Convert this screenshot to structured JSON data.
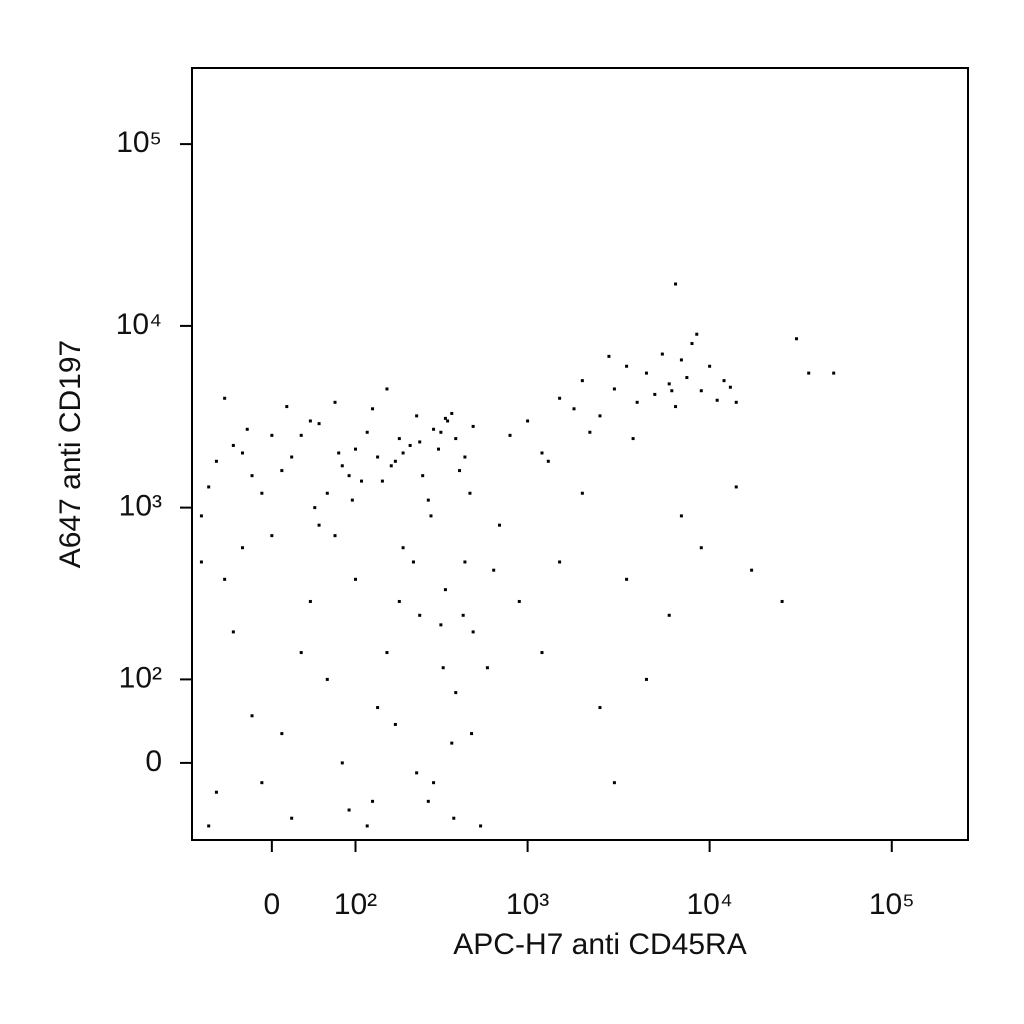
{
  "chart_data": {
    "type": "scatter",
    "x_label": "APC-H7 anti CD45RA",
    "y_label": "A647 anti CD197",
    "scale": "asinh",
    "linear_width": 79,
    "xlim": [
      -94,
      262144
    ],
    "ylim": [
      -90,
      262144
    ],
    "xticks": [
      0,
      {
        "value": 100,
        "label": "10²"
      },
      {
        "value": 1000,
        "label": "10³"
      },
      {
        "value": 10000,
        "label": "10⁴"
      },
      {
        "value": 100000,
        "label": "10⁵"
      }
    ],
    "yticks": [
      0,
      {
        "value": 100,
        "label": "10²"
      },
      {
        "value": 1000,
        "label": "10³"
      },
      {
        "value": 10000,
        "label": "10⁴"
      },
      {
        "value": 100000,
        "label": "10⁵"
      }
    ],
    "color": "#000000",
    "x": [
      -60,
      -40,
      -20,
      0,
      20,
      40,
      60,
      80,
      100,
      120,
      150,
      180,
      200,
      250,
      300,
      350,
      400,
      450,
      500,
      -70,
      -30,
      10,
      50,
      90,
      130,
      170,
      220,
      280,
      330,
      380,
      -50,
      -10,
      30,
      70,
      110,
      160,
      240,
      320,
      420,
      -80,
      15,
      45,
      75,
      140,
      190,
      260,
      360,
      480,
      -25,
      95,
      800,
      1000,
      1200,
      1500,
      1800,
      2000,
      2500,
      3000,
      3500,
      4000,
      4500,
      5000,
      5500,
      6000,
      6500,
      7000,
      7500,
      8000,
      9000,
      10000,
      11000,
      12000,
      13000,
      1300,
      2200,
      2800,
      3800,
      6200,
      8500,
      14000,
      -80,
      -60,
      -40,
      -20,
      0,
      20,
      40,
      60,
      80,
      100,
      130,
      160,
      200,
      250,
      300,
      350,
      400,
      450,
      500,
      550,
      600,
      650,
      -70,
      -30,
      10,
      50,
      90,
      140,
      190,
      240,
      290,
      340,
      390,
      440,
      490,
      -50,
      -10,
      30,
      70,
      120,
      180,
      230,
      280,
      330,
      380,
      700,
      900,
      1200,
      1500,
      2000,
      2500,
      3000,
      3500,
      4500,
      6000,
      7000,
      9000,
      14000,
      17000,
      25000,
      35000,
      30000,
      48000,
      6500
    ],
    "y": [
      1800,
      2200,
      1500,
      2500,
      1900,
      3000,
      1200,
      1700,
      2100,
      2600,
      1400,
      1800,
      2000,
      2300,
      2700,
      3100,
      2400,
      1900,
      2800,
      1300,
      2000,
      1600,
      2900,
      1500,
      3500,
      1700,
      2200,
      1100,
      2600,
      3300,
      4000,
      1200,
      2500,
      3800,
      1400,
      4500,
      3200,
      2100,
      1600,
      900,
      3600,
      1000,
      2000,
      1900,
      2400,
      1500,
      3000,
      1200,
      2700,
      1100,
      2500,
      3000,
      2000,
      4000,
      3500,
      5000,
      3200,
      4500,
      6000,
      3800,
      5500,
      4200,
      7000,
      4800,
      3600,
      6500,
      5200,
      8000,
      4400,
      6000,
      3900,
      5000,
      4600,
      1800,
      2600,
      6800,
      2400,
      4400,
      9000,
      3800,
      500,
      -30,
      200,
      50,
      700,
      -60,
      300,
      100,
      0,
      400,
      -40,
      150,
      600,
      250,
      -20,
      350,
      80,
      500,
      200,
      -70,
      120,
      450,
      -70,
      600,
      30,
      800,
      -50,
      60,
      300,
      -10,
      900,
      120,
      -60,
      250,
      30,
      400,
      -20,
      150,
      700,
      -70,
      40,
      500,
      -40,
      220,
      20,
      800,
      300,
      150,
      500,
      1200,
      60,
      -20,
      400,
      100,
      250,
      900,
      600,
      1300,
      450,
      300,
      5500,
      8500,
      5500,
      17000
    ]
  }
}
